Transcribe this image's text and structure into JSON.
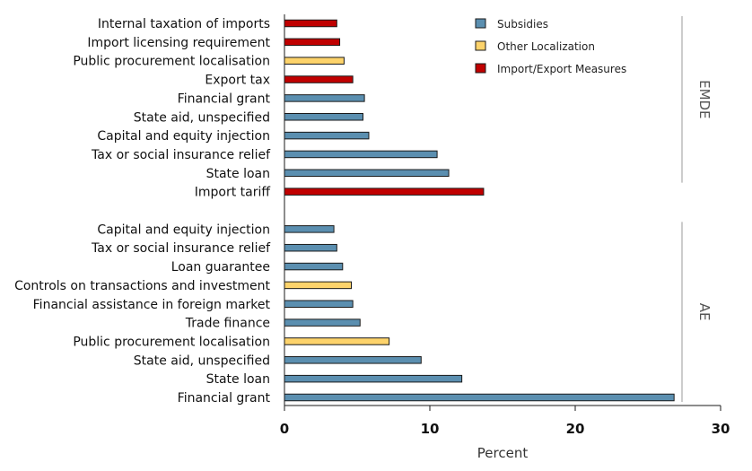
{
  "chart_data": {
    "type": "bar",
    "orientation": "horizontal",
    "xlabel": "Percent",
    "xlim": [
      0,
      30
    ],
    "xticks": [
      0,
      10,
      20,
      30
    ],
    "grid": false,
    "legend_position": "top-right",
    "series": [
      {
        "name": "Subsidies",
        "color": "#5b8fb0"
      },
      {
        "name": "Other Localization",
        "color": "#fdd36b"
      },
      {
        "name": "Import/Export Measures",
        "color": "#c00000"
      }
    ],
    "groups": [
      {
        "name": "EMDE",
        "bars": [
          {
            "label": "Internal taxation of imports",
            "value": 3.6,
            "series": "Import/Export Measures"
          },
          {
            "label": "Import licensing requirement",
            "value": 3.8,
            "series": "Import/Export Measures"
          },
          {
            "label": "Public procurement localisation",
            "value": 4.1,
            "series": "Other Localization"
          },
          {
            "label": "Export tax",
            "value": 4.7,
            "series": "Import/Export Measures"
          },
          {
            "label": "Financial grant",
            "value": 5.5,
            "series": "Subsidies"
          },
          {
            "label": "State aid, unspecified",
            "value": 5.4,
            "series": "Subsidies"
          },
          {
            "label": "Capital and equity injection",
            "value": 5.8,
            "series": "Subsidies"
          },
          {
            "label": "Tax or social insurance relief",
            "value": 10.5,
            "series": "Subsidies"
          },
          {
            "label": "State loan",
            "value": 11.3,
            "series": "Subsidies"
          },
          {
            "label": "Import tariff",
            "value": 13.7,
            "series": "Import/Export Measures"
          }
        ]
      },
      {
        "name": "AE",
        "bars": [
          {
            "label": "Capital and equity injection",
            "value": 3.4,
            "series": "Subsidies"
          },
          {
            "label": "Tax or social insurance relief",
            "value": 3.6,
            "series": "Subsidies"
          },
          {
            "label": "Loan guarantee",
            "value": 4.0,
            "series": "Subsidies"
          },
          {
            "label": "Controls on transactions and investment",
            "value": 4.6,
            "series": "Other Localization"
          },
          {
            "label": "Financial assistance in foreign market",
            "value": 4.7,
            "series": "Subsidies"
          },
          {
            "label": "Trade finance",
            "value": 5.2,
            "series": "Subsidies"
          },
          {
            "label": "Public procurement localisation",
            "value": 7.2,
            "series": "Other Localization"
          },
          {
            "label": "State aid, unspecified",
            "value": 9.4,
            "series": "Subsidies"
          },
          {
            "label": "State loan",
            "value": 12.2,
            "series": "Subsidies"
          },
          {
            "label": "Financial grant",
            "value": 26.8,
            "series": "Subsidies"
          }
        ]
      }
    ]
  }
}
